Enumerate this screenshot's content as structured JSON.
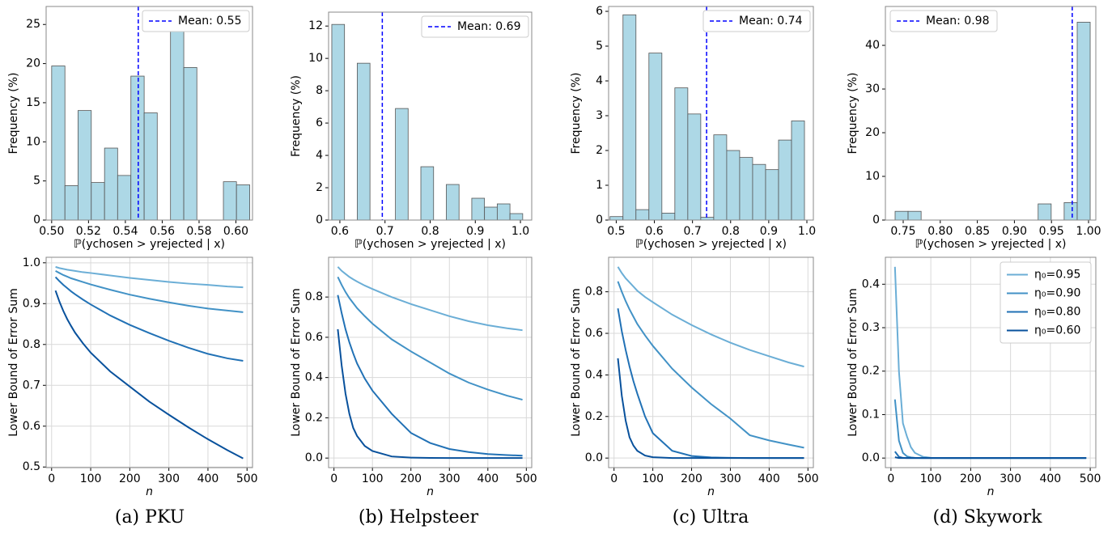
{
  "chart_data": [
    {
      "type": "histogram",
      "xlabel": "ℙ(ychosen > yrejected | x)",
      "ylabel": "Frequency (%)",
      "color": "#add8e6",
      "bins": [
        0.5,
        0.5072,
        0.5143,
        0.5215,
        0.5287,
        0.5358,
        0.543,
        0.5502,
        0.5573,
        0.5645,
        0.5717,
        0.5788,
        0.586,
        0.5932,
        0.6003,
        0.6075
      ],
      "counts": [
        19.7,
        4.4,
        14.0,
        4.8,
        9.2,
        5.7,
        18.4,
        13.7,
        0,
        24.5,
        19.5,
        0,
        0,
        4.9,
        4.5
      ],
      "mean_line": {
        "value": 0.547,
        "label": "Mean: 0.55",
        "color": "#0000ff"
      },
      "legend": "upper right",
      "xlim": [
        0.497,
        0.609
      ],
      "ylim": [
        0,
        27.3
      ],
      "xticks": [
        {
          "value": 0.5,
          "label": "0.50"
        },
        0.52,
        0.54,
        0.56,
        0.58,
        {
          "value": 0.6,
          "label": "0.60"
        }
      ],
      "yticks": [
        0,
        5,
        10,
        15,
        20,
        25
      ]
    },
    {
      "type": "histogram",
      "xlabel": "ℙ(ychosen > yrejected | x)",
      "ylabel": "Frequency (%)",
      "color": "#add8e6",
      "bins": [
        0.5821,
        0.6103,
        0.6385,
        0.6667,
        0.6949,
        0.7231,
        0.7512,
        0.7794,
        0.8076,
        0.8358,
        0.864,
        0.8922,
        0.9204,
        0.9486,
        0.9768,
        1.005
      ],
      "counts": [
        12.1,
        0,
        9.7,
        0,
        0,
        6.9,
        0,
        3.3,
        0,
        2.2,
        0,
        1.35,
        0.8,
        1.0,
        0.4
      ],
      "mean_line": {
        "value": 0.694,
        "label": "Mean: 0.69",
        "color": "#0000ff"
      },
      "legend": "upper right",
      "xlim": [
        0.575,
        1.025
      ],
      "ylim": [
        0,
        12.86
      ],
      "xticks": [
        0.6,
        0.7,
        0.8,
        0.9,
        {
          "value": 1,
          "label": "1.0"
        }
      ],
      "yticks": [
        0,
        2,
        4,
        6,
        8,
        10,
        12
      ]
    },
    {
      "type": "histogram",
      "xlabel": "ℙ(ychosen > yrejected | x)",
      "ylabel": "Frequency (%)",
      "color": "#add8e6",
      "bins": [
        0.4837,
        0.5177,
        0.5517,
        0.5857,
        0.6197,
        0.6537,
        0.6877,
        0.7217,
        0.7557,
        0.7897,
        0.8237,
        0.8577,
        0.8917,
        0.9257,
        0.9597,
        0.9937
      ],
      "counts": [
        0.1,
        5.9,
        0.3,
        4.8,
        0.2,
        3.8,
        3.05,
        0.08,
        2.45,
        2.0,
        1.8,
        1.6,
        1.45,
        2.3,
        2.85
      ],
      "mean_line": {
        "value": 0.737,
        "label": "Mean: 0.74",
        "color": "#0000ff"
      },
      "legend": "upper right",
      "xlim": [
        0.48,
        1.017
      ],
      "ylim": [
        0,
        6.14
      ],
      "xticks": [
        0.5,
        0.6,
        0.7,
        0.8,
        0.9,
        {
          "value": 1,
          "label": "1.0"
        }
      ],
      "yticks": [
        0,
        1,
        2,
        3,
        4,
        5,
        6
      ]
    },
    {
      "type": "histogram",
      "xlabel": "ℙ(ychosen > yrejected | x)",
      "ylabel": "Frequency (%)",
      "color": "#add8e6",
      "bins": [
        0.7391,
        0.7566,
        0.7742,
        0.7917,
        0.8093,
        0.8268,
        0.8443,
        0.8619,
        0.8794,
        0.897,
        0.9145,
        0.932,
        0.9496,
        0.9671,
        0.9847,
        1.0022
      ],
      "counts": [
        2.0,
        2.0,
        0,
        0,
        0,
        0,
        0,
        0,
        0,
        0,
        0,
        3.7,
        0,
        4.0,
        45.3
      ],
      "mean_line": {
        "value": 0.978,
        "label": "Mean: 0.98",
        "color": "#0000ff"
      },
      "legend": "upper left",
      "xlim": [
        0.726,
        1.0098
      ],
      "ylim": [
        0,
        48.9
      ],
      "xticks": [
        0.75,
        {
          "value": 0.8,
          "label": "0.80"
        },
        0.85,
        {
          "value": 0.9,
          "label": "0.90"
        },
        0.95,
        {
          "value": 1,
          "label": "1.00"
        }
      ],
      "yticks": [
        0,
        10,
        20,
        30,
        40
      ]
    },
    {
      "type": "line",
      "xlabel": "n",
      "ylabel": "Lower Bound of Error Sum",
      "grid": true,
      "x": [
        10,
        20,
        30,
        40,
        50,
        60,
        80,
        100,
        150,
        200,
        250,
        300,
        350,
        400,
        450,
        490
      ],
      "series": [
        {
          "color": "#6baed6",
          "values": [
            0.99,
            0.987,
            0.985,
            0.983,
            0.9815,
            0.98,
            0.977,
            0.975,
            0.969,
            0.963,
            0.958,
            0.953,
            0.949,
            0.946,
            0.942,
            0.94
          ]
        },
        {
          "color": "#4292c6",
          "values": [
            0.98,
            0.975,
            0.97,
            0.966,
            0.962,
            0.959,
            0.953,
            0.947,
            0.934,
            0.922,
            0.912,
            0.903,
            0.895,
            0.888,
            0.883,
            0.879
          ]
        },
        {
          "color": "#2171b5",
          "values": [
            0.965,
            0.955,
            0.946,
            0.938,
            0.93,
            0.923,
            0.91,
            0.898,
            0.871,
            0.848,
            0.828,
            0.809,
            0.792,
            0.777,
            0.766,
            0.76
          ]
        },
        {
          "color": "#08519c",
          "values": [
            0.932,
            0.905,
            0.882,
            0.862,
            0.845,
            0.829,
            0.803,
            0.78,
            0.734,
            0.697,
            0.66,
            0.628,
            0.597,
            0.568,
            0.541,
            0.521
          ]
        }
      ],
      "xlim": [
        -14,
        514
      ],
      "ylim": [
        0.4985,
        1.0135
      ],
      "xticks": [
        0,
        100,
        200,
        300,
        400,
        500
      ],
      "yticks": [
        0.5,
        0.6,
        0.7,
        0.8,
        0.9,
        {
          "value": 1,
          "label": "1.0"
        }
      ]
    },
    {
      "type": "line",
      "xlabel": "n",
      "ylabel": "Lower Bound of Error Sum",
      "grid": true,
      "x": [
        10,
        20,
        30,
        40,
        50,
        60,
        80,
        100,
        150,
        200,
        250,
        300,
        350,
        400,
        450,
        490
      ],
      "series": [
        {
          "color": "#6baed6",
          "values": [
            0.95,
            0.93,
            0.915,
            0.9,
            0.888,
            0.877,
            0.857,
            0.84,
            0.8,
            0.765,
            0.735,
            0.705,
            0.68,
            0.66,
            0.645,
            0.635
          ]
        },
        {
          "color": "#4292c6",
          "values": [
            0.9,
            0.86,
            0.825,
            0.795,
            0.77,
            0.745,
            0.705,
            0.668,
            0.59,
            0.53,
            0.475,
            0.42,
            0.375,
            0.34,
            0.31,
            0.29
          ]
        },
        {
          "color": "#2171b5",
          "values": [
            0.81,
            0.72,
            0.64,
            0.575,
            0.52,
            0.47,
            0.395,
            0.335,
            0.22,
            0.125,
            0.075,
            0.045,
            0.03,
            0.02,
            0.015,
            0.012
          ]
        },
        {
          "color": "#08519c",
          "values": [
            0.64,
            0.46,
            0.32,
            0.22,
            0.15,
            0.11,
            0.06,
            0.035,
            0.008,
            0.002,
            0.0005,
            0,
            0,
            0,
            0,
            0
          ]
        }
      ],
      "xlim": [
        -14,
        514
      ],
      "ylim": [
        -0.0475,
        0.9975
      ],
      "xticks": [
        0,
        100,
        200,
        300,
        400,
        500
      ],
      "yticks": [
        {
          "value": 0,
          "label": "0.0"
        },
        0.2,
        0.4,
        0.6,
        0.8
      ]
    },
    {
      "type": "line",
      "xlabel": "n",
      "ylabel": "Lower Bound of Error Sum",
      "grid": true,
      "x": [
        10,
        20,
        30,
        40,
        50,
        60,
        80,
        100,
        150,
        200,
        250,
        300,
        350,
        400,
        450,
        490
      ],
      "series": [
        {
          "color": "#6baed6",
          "values": [
            0.92,
            0.89,
            0.865,
            0.845,
            0.825,
            0.805,
            0.775,
            0.75,
            0.69,
            0.64,
            0.595,
            0.555,
            0.52,
            0.49,
            0.46,
            0.44
          ]
        },
        {
          "color": "#4292c6",
          "values": [
            0.85,
            0.8,
            0.755,
            0.715,
            0.68,
            0.645,
            0.59,
            0.54,
            0.43,
            0.34,
            0.26,
            0.19,
            0.11,
            0.085,
            0.065,
            0.05
          ]
        },
        {
          "color": "#2171b5",
          "values": [
            0.72,
            0.61,
            0.52,
            0.44,
            0.37,
            0.31,
            0.2,
            0.12,
            0.035,
            0.01,
            0.003,
            0.001,
            0,
            0,
            0,
            0
          ]
        },
        {
          "color": "#08519c",
          "values": [
            0.48,
            0.3,
            0.18,
            0.1,
            0.06,
            0.035,
            0.012,
            0.004,
            0,
            0,
            0,
            0,
            0,
            0,
            0,
            0
          ]
        }
      ],
      "xlim": [
        -14,
        514
      ],
      "ylim": [
        -0.046,
        0.966
      ],
      "xticks": [
        0,
        100,
        200,
        300,
        400,
        500
      ],
      "yticks": [
        {
          "value": 0,
          "label": "0.0"
        },
        0.2,
        0.4,
        0.6,
        0.8
      ]
    },
    {
      "type": "line",
      "xlabel": "n",
      "ylabel": "Lower Bound of Error Sum",
      "grid": true,
      "legend": "upper right",
      "x": [
        10,
        20,
        30,
        40,
        50,
        60,
        80,
        100,
        150,
        200,
        250,
        300,
        350,
        400,
        450,
        490
      ],
      "series": [
        {
          "name": "η₀=0.95",
          "color": "#6baed6",
          "values": [
            0.44,
            0.2,
            0.08,
            0.05,
            0.025,
            0.012,
            0.003,
            0.0005,
            0,
            0,
            0,
            0,
            0,
            0,
            0,
            0
          ]
        },
        {
          "name": "η₀=0.90",
          "color": "#4292c6",
          "values": [
            0.135,
            0.04,
            0.012,
            0.004,
            0.0015,
            0.0005,
            0,
            0,
            0,
            0,
            0,
            0,
            0,
            0,
            0,
            0
          ]
        },
        {
          "name": "η₀=0.80",
          "color": "#2171b5",
          "values": [
            0.015,
            0.003,
            0.0005,
            0,
            0,
            0,
            0,
            0,
            0,
            0,
            0,
            0,
            0,
            0,
            0,
            0
          ]
        },
        {
          "name": "η₀=0.60",
          "color": "#08519c",
          "values": [
            0.002,
            0,
            0,
            0,
            0,
            0,
            0,
            0,
            0,
            0,
            0,
            0,
            0,
            0,
            0,
            0
          ]
        }
      ],
      "xlim": [
        -14,
        514
      ],
      "ylim": [
        -0.022,
        0.462
      ],
      "xticks": [
        0,
        100,
        200,
        300,
        400,
        500
      ],
      "yticks": [
        {
          "value": 0,
          "label": "0.0"
        },
        0.1,
        0.2,
        0.3,
        0.4
      ]
    }
  ],
  "captions": [
    "(a) PKU",
    "(b) Helpsteer",
    "(c) Ultra",
    "(d) Skywork"
  ]
}
